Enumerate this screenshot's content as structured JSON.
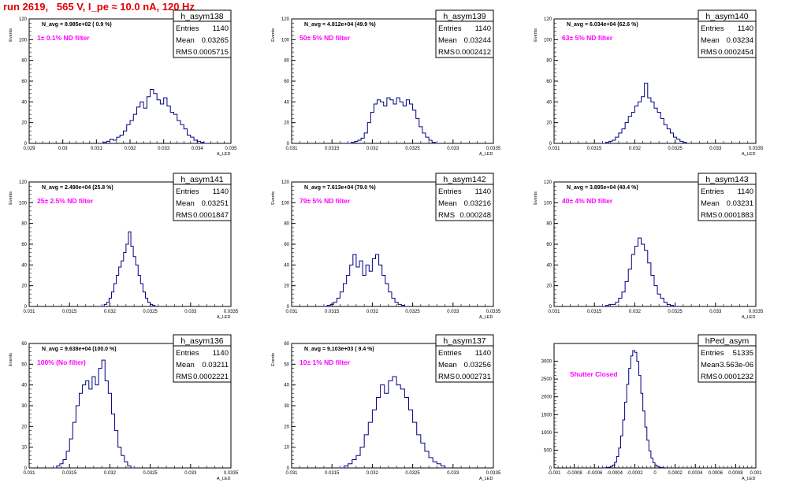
{
  "header": {
    "run_label": "run 2619,   565 V, I_pe ≈ 10.0 nA, 120 Hz"
  },
  "colors": {
    "line": "#000080",
    "title": "#ee0000",
    "note": "#ff00ff",
    "frame": "#000000",
    "grid": "#b0b0b0"
  },
  "panels": [
    {
      "name": "h_asym138",
      "entries": "1140",
      "mean": "0.03265",
      "rms": "0.0005715",
      "navg": "N_avg = 8.985e+02 ( 0.9 %)",
      "filter": "1± 0.1% ND filter",
      "xticks": [
        "0.029",
        "0.03",
        "0.031",
        "0.032",
        "0.033",
        "0.034",
        "0.035"
      ],
      "xrange": [
        0.029,
        0.035
      ],
      "yticks": [
        "0",
        "20",
        "40",
        "60",
        "80",
        "100",
        "120"
      ],
      "yrange": [
        0,
        120
      ],
      "xlabel": "A_LED",
      "ylabel": "Events",
      "chart_data": {
        "type": "histogram",
        "x_start": 0.0311,
        "bin_width": 0.0001,
        "values": [
          0,
          1,
          2,
          4,
          3,
          6,
          8,
          12,
          18,
          22,
          28,
          35,
          40,
          34,
          45,
          52,
          48,
          42,
          38,
          44,
          36,
          30,
          28,
          22,
          18,
          14,
          8,
          6,
          3,
          2,
          1,
          0
        ]
      }
    },
    {
      "name": "h_asym139",
      "entries": "1140",
      "mean": "0.03244",
      "rms": "0.0002412",
      "navg": "N_avg = 4.812e+04 (49.9 %)",
      "filter": "50± 5% ND filter",
      "xticks": [
        "0.031",
        "0.0315",
        "0.032",
        "0.0325",
        "0.033",
        "0.0335"
      ],
      "xrange": [
        0.031,
        0.0335
      ],
      "yticks": [
        "0",
        "20",
        "40",
        "60",
        "80",
        "100",
        "120"
      ],
      "yrange": [
        0,
        120
      ],
      "xlabel": "A_LED",
      "ylabel": "Events",
      "chart_data": {
        "type": "histogram",
        "x_start": 0.0317,
        "bin_width": 4e-05,
        "values": [
          0,
          1,
          2,
          3,
          5,
          10,
          20,
          30,
          38,
          42,
          40,
          36,
          44,
          42,
          38,
          44,
          40,
          36,
          42,
          38,
          32,
          24,
          16,
          10,
          6,
          3,
          1,
          0
        ]
      }
    },
    {
      "name": "h_asym140",
      "entries": "1140",
      "mean": "0.03234",
      "rms": "0.0002454",
      "navg": "N_avg = 6.034e+04 (62.6 %)",
      "filter": "63± 5% ND filter",
      "xticks": [
        "0.031",
        "0.0315",
        "0.032",
        "0.0325",
        "0.033",
        "0.0335"
      ],
      "xrange": [
        0.031,
        0.0335
      ],
      "yticks": [
        "0",
        "20",
        "40",
        "60",
        "80",
        "100",
        "120"
      ],
      "yrange": [
        0,
        120
      ],
      "xlabel": "A_LED",
      "ylabel": "Events",
      "chart_data": {
        "type": "histogram",
        "x_start": 0.0316,
        "bin_width": 4e-05,
        "values": [
          0,
          1,
          2,
          3,
          6,
          10,
          14,
          20,
          26,
          30,
          36,
          40,
          45,
          58,
          44,
          40,
          34,
          30,
          24,
          18,
          14,
          10,
          6,
          4,
          2,
          1,
          0
        ]
      }
    },
    {
      "name": "h_asym141",
      "entries": "1140",
      "mean": "0.03251",
      "rms": "0.0001847",
      "navg": "N_avg = 2.490e+04 (25.8 %)",
      "filter": "25± 2.5% ND filter",
      "xticks": [
        "0.031",
        "0.0315",
        "0.032",
        "0.0325",
        "0.033",
        "0.0335"
      ],
      "xrange": [
        0.031,
        0.0335
      ],
      "yticks": [
        "0",
        "20",
        "40",
        "60",
        "80",
        "100",
        "120"
      ],
      "yrange": [
        0,
        120
      ],
      "xlabel": "A_LED",
      "ylabel": "Events",
      "chart_data": {
        "type": "histogram",
        "x_start": 0.0319,
        "bin_width": 3e-05,
        "values": [
          0,
          2,
          4,
          8,
          14,
          22,
          30,
          38,
          44,
          52,
          60,
          72,
          58,
          48,
          40,
          30,
          22,
          14,
          8,
          4,
          2,
          1,
          0
        ]
      }
    },
    {
      "name": "h_asym142",
      "entries": "1140",
      "mean": "0.03216",
      "rms": "0.000248",
      "navg": "N_avg = 7.613e+04 (79.0 %)",
      "filter": "79± 5% ND filter",
      "xticks": [
        "0.031",
        "0.0315",
        "0.032",
        "0.0325",
        "0.033",
        "0.0335"
      ],
      "xrange": [
        0.031,
        0.0335
      ],
      "yticks": [
        "0",
        "20",
        "40",
        "60",
        "80",
        "100",
        "120"
      ],
      "yrange": [
        0,
        120
      ],
      "xlabel": "A_LED",
      "ylabel": "Events",
      "chart_data": {
        "type": "histogram",
        "x_start": 0.0314,
        "bin_width": 4e-05,
        "values": [
          0,
          1,
          2,
          4,
          8,
          14,
          22,
          30,
          40,
          50,
          38,
          44,
          30,
          40,
          34,
          46,
          50,
          40,
          30,
          22,
          14,
          8,
          4,
          2,
          1,
          0
        ]
      }
    },
    {
      "name": "h_asym143",
      "entries": "1140",
      "mean": "0.03231",
      "rms": "0.0001883",
      "navg": "N_avg = 3.895e+04 (40.4 %)",
      "filter": "40± 4% ND filter",
      "xticks": [
        "0.031",
        "0.0315",
        "0.032",
        "0.0325",
        "0.033",
        "0.0335"
      ],
      "xrange": [
        0.031,
        0.0335
      ],
      "yticks": [
        "0",
        "20",
        "40",
        "60",
        "80",
        "100",
        "120"
      ],
      "yrange": [
        0,
        120
      ],
      "xlabel": "A_LED",
      "ylabel": "Events",
      "chart_data": {
        "type": "histogram",
        "x_start": 0.0316,
        "bin_width": 4e-05,
        "values": [
          0,
          1,
          2,
          2,
          4,
          8,
          14,
          24,
          36,
          50,
          58,
          66,
          60,
          54,
          42,
          30,
          20,
          12,
          8,
          4,
          2,
          1,
          0
        ]
      }
    },
    {
      "name": "h_asym136",
      "entries": "1140",
      "mean": "0.03211",
      "rms": "0.0002221",
      "navg": "N_avg = 9.638e+04 (100.0 %)",
      "filter": "100% (No filter)",
      "xticks": [
        "0.031",
        "0.0315",
        "0.032",
        "0.0325",
        "0.033",
        "0.0335"
      ],
      "xrange": [
        0.031,
        0.0335
      ],
      "yticks": [
        "0",
        "10",
        "20",
        "30",
        "40",
        "50",
        "60"
      ],
      "yrange": [
        0,
        60
      ],
      "xlabel": "A_LED",
      "ylabel": "Events",
      "chart_data": {
        "type": "histogram",
        "x_start": 0.0313,
        "bin_width": 4e-05,
        "values": [
          0,
          1,
          2,
          4,
          8,
          14,
          22,
          30,
          36,
          40,
          42,
          38,
          44,
          40,
          48,
          52,
          42,
          36,
          26,
          18,
          10,
          6,
          3,
          1,
          0
        ]
      }
    },
    {
      "name": "h_asym137",
      "entries": "1140",
      "mean": "0.03256",
      "rms": "0.0002731",
      "navg": "N_avg = 9.103e+03 ( 9.4 %)",
      "filter": "10± 1% ND filter",
      "xticks": [
        "0.031",
        "0.0315",
        "0.032",
        "0.0325",
        "0.033",
        "0.0335"
      ],
      "xrange": [
        0.031,
        0.0335
      ],
      "yticks": [
        "0",
        "10",
        "20",
        "30",
        "40",
        "50",
        "60"
      ],
      "yrange": [
        0,
        60
      ],
      "xlabel": "A_LED",
      "ylabel": "Events",
      "chart_data": {
        "type": "histogram",
        "x_start": 0.0316,
        "bin_width": 5e-05,
        "values": [
          0,
          1,
          2,
          4,
          6,
          10,
          16,
          22,
          28,
          34,
          40,
          36,
          42,
          44,
          40,
          38,
          34,
          28,
          22,
          16,
          12,
          8,
          5,
          3,
          2,
          1,
          0
        ]
      }
    },
    {
      "name": "hPed_asym",
      "entries": "51335",
      "mean": "-3.563e-06",
      "rms": "0.0001232",
      "navg": "",
      "filter": "Shutter Closed",
      "xticks": [
        "-0.001",
        "-0.0008",
        "-0.0006",
        "-0.0004",
        "-0.0002",
        "0",
        "0.0002",
        "0.0004",
        "0.0006",
        "0.0008",
        "0.001"
      ],
      "xrange": [
        -0.001,
        0.001
      ],
      "yticks": [
        "0",
        "500",
        "1000",
        "1500",
        "2000",
        "2500",
        "3000"
      ],
      "yrange": [
        0,
        3500
      ],
      "xlabel": "A_LED",
      "ylabel": "",
      "chart_data": {
        "type": "histogram",
        "x_start": -0.0005,
        "bin_width": 2e-05,
        "values": [
          5,
          10,
          20,
          40,
          80,
          160,
          320,
          560,
          900,
          1350,
          1850,
          2350,
          2800,
          3150,
          3300,
          3250,
          3000,
          2600,
          2100,
          1600,
          1150,
          780,
          480,
          280,
          150,
          80,
          40,
          20,
          10,
          5
        ]
      }
    }
  ]
}
